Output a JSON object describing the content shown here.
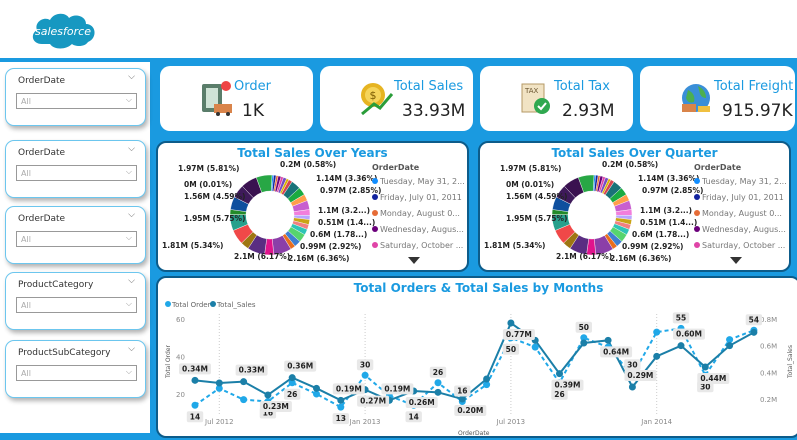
{
  "header": {
    "logo_text": "salesforce"
  },
  "slicers": [
    {
      "title": "OrderDate",
      "value": "All"
    },
    {
      "title": "OrderDate",
      "value": "All"
    },
    {
      "title": "OrderDate",
      "value": "All"
    },
    {
      "title": "ProductCategory",
      "value": "All"
    },
    {
      "title": "ProductSubCategory",
      "value": "All"
    }
  ],
  "kpis": [
    {
      "label": "Order",
      "value": "1K",
      "icon": "clipboard-truck-icon"
    },
    {
      "label": "Total Sales",
      "value": "33.93M",
      "icon": "coin-growth-icon"
    },
    {
      "label": "Total Tax",
      "value": "2.93M",
      "icon": "tax-document-icon"
    },
    {
      "label": "Total Freight",
      "value": "915.97K",
      "icon": "globe-freight-icon"
    }
  ],
  "colors": {
    "accent": "#1a9ae0",
    "order_line": "#20a8e8",
    "sales_line": "#1b7fa8"
  },
  "chart_data": [
    {
      "type": "pie",
      "title": "Total Sales Over Years",
      "legend_title": "OrderDate",
      "legend": [
        {
          "label": "Tuesday, May 31, 2...",
          "color": "#118DFF"
        },
        {
          "label": "Friday, July 01, 2011",
          "color": "#12239E"
        },
        {
          "label": "Monday, August 0...",
          "color": "#E66C37"
        },
        {
          "label": "Wednesday, Augus...",
          "color": "#6B007B"
        },
        {
          "label": "Saturday, October ...",
          "color": "#E044A7"
        }
      ],
      "slices": [
        {
          "value": 0.2,
          "label": "0.2M (0.58%)"
        },
        {
          "value": 0.3
        },
        {
          "value": 0.25
        },
        {
          "value": 0.35
        },
        {
          "value": 0.3
        },
        {
          "value": 0.4
        },
        {
          "value": 0.3
        },
        {
          "value": 0.45
        },
        {
          "value": 1.14,
          "label": "1.14M (3.36%)"
        },
        {
          "value": 0.97,
          "label": "0.97M (2.85%)"
        },
        {
          "value": 0.8
        },
        {
          "value": 1.1,
          "label": "1.1M (3.2...)"
        },
        {
          "value": 0.7
        },
        {
          "value": 0.51,
          "label": "0.51M (1.4...)"
        },
        {
          "value": 0.6
        },
        {
          "value": 0.6,
          "label": "0.6M (1.78...)"
        },
        {
          "value": 0.7
        },
        {
          "value": 0.99,
          "label": "0.99M (2.92%)"
        },
        {
          "value": 0.8
        },
        {
          "value": 0.6
        },
        {
          "value": 2.16,
          "label": "2.16M (6.36%)"
        },
        {
          "value": 1.1
        },
        {
          "value": 2.1,
          "label": "2.1M (6.17%)"
        },
        {
          "value": 1.0
        },
        {
          "value": 1.81,
          "label": "1.81M (5.34%)"
        },
        {
          "value": 1.95,
          "label": "1.95M (5.75%)"
        },
        {
          "value": 0.6
        },
        {
          "value": 1.56,
          "label": "1.56M (4.59%)"
        },
        {
          "value": 0.0,
          "label": "0M (0.01%)"
        },
        {
          "value": 1.6
        },
        {
          "value": 1.97,
          "label": "1.97M (5.81%)"
        },
        {
          "value": 1.9
        }
      ]
    },
    {
      "type": "pie",
      "title": "Total Sales Over Quarter",
      "legend_title": "OrderDate",
      "legend": [
        {
          "label": "Tuesday, May 31, 2...",
          "color": "#118DFF"
        },
        {
          "label": "Friday, July 01, 2011",
          "color": "#12239E"
        },
        {
          "label": "Monday, August 0...",
          "color": "#E66C37"
        },
        {
          "label": "Wednesday, Augus...",
          "color": "#6B007B"
        },
        {
          "label": "Saturday, October ...",
          "color": "#E044A7"
        }
      ],
      "slices": [
        {
          "value": 0.2,
          "label": "0.2M (0.58%)"
        },
        {
          "value": 0.3
        },
        {
          "value": 0.25
        },
        {
          "value": 0.35
        },
        {
          "value": 0.3
        },
        {
          "value": 0.4
        },
        {
          "value": 0.3
        },
        {
          "value": 0.45
        },
        {
          "value": 1.14,
          "label": "1.14M (3.36%)"
        },
        {
          "value": 0.97,
          "label": "0.97M (2.85%)"
        },
        {
          "value": 0.8
        },
        {
          "value": 1.1,
          "label": "1.1M (3.2...)"
        },
        {
          "value": 0.7
        },
        {
          "value": 0.51,
          "label": "0.51M (1.4...)"
        },
        {
          "value": 0.6
        },
        {
          "value": 0.6,
          "label": "0.6M (1.78...)"
        },
        {
          "value": 0.7
        },
        {
          "value": 0.99,
          "label": "0.99M (2.92%)"
        },
        {
          "value": 0.8
        },
        {
          "value": 0.6
        },
        {
          "value": 2.16,
          "label": "2.16M (6.36%)"
        },
        {
          "value": 1.1
        },
        {
          "value": 2.1,
          "label": "2.1M (6.17%)"
        },
        {
          "value": 1.0
        },
        {
          "value": 1.81,
          "label": "1.81M (5.34%)"
        },
        {
          "value": 1.95,
          "label": "1.95M (5.75%)"
        },
        {
          "value": 0.6
        },
        {
          "value": 1.56,
          "label": "1.56M (4.59%)"
        },
        {
          "value": 0.0,
          "label": "0M (0.01%)"
        },
        {
          "value": 1.6
        },
        {
          "value": 1.97,
          "label": "1.97M (5.81%)"
        },
        {
          "value": 1.9
        }
      ]
    },
    {
      "type": "line",
      "title": "Total Orders & Total Sales by Months",
      "xlabel": "OrderDate",
      "ylabel": "Total Order",
      "y2label": "Total_Sales",
      "legend": [
        "Total Order",
        "Total_Sales"
      ],
      "x_ticks": [
        "Jul 2012",
        "Jan 2013",
        "Jul 2013",
        "Jan 2014"
      ],
      "y_ticks": [
        "20",
        "40",
        "60"
      ],
      "y2_ticks": [
        "0.2M",
        "0.4M",
        "0.6M",
        "0.8M"
      ],
      "ylim": [
        0,
        60
      ],
      "y2lim": [
        0,
        0.8
      ],
      "x": [
        "Jun 2012",
        "Jul 2012",
        "Aug 2012",
        "Sep 2012",
        "Oct 2012",
        "Nov 2012",
        "Dec 2012",
        "Jan 2013",
        "Feb 2013",
        "Mar 2013",
        "Apr 2013",
        "May 2013",
        "Jun 2013",
        "Jul 2013",
        "Aug 2013",
        "Sep 2013",
        "Oct 2013",
        "Nov 2013",
        "Dec 2013",
        "Jan 2014",
        "Feb 2014",
        "Mar 2014",
        "Apr 2014",
        "May 2014"
      ],
      "series": [
        {
          "name": "Total Order",
          "values": [
            14,
            23,
            17,
            16,
            26,
            20,
            13,
            30,
            19,
            14,
            26,
            16,
            25,
            50,
            45,
            26,
            50,
            45,
            30,
            53,
            55,
            30,
            49,
            54
          ],
          "labels": [
            "14",
            "",
            "",
            "16",
            "26",
            "",
            "13",
            "30",
            "",
            "14",
            "26",
            "16",
            "",
            "50",
            "",
            "26",
            "50",
            "",
            "30",
            "",
            "55",
            "30",
            "",
            "54"
          ]
        },
        {
          "name": "Total_Sales",
          "values": [
            0.34,
            0.32,
            0.33,
            0.23,
            0.36,
            0.28,
            0.19,
            0.27,
            0.19,
            0.26,
            0.25,
            0.2,
            0.35,
            0.77,
            0.64,
            0.39,
            0.62,
            0.64,
            0.29,
            0.52,
            0.6,
            0.44,
            0.6,
            0.7
          ],
          "labels": [
            "0.34M",
            "",
            "0.33M",
            "0.23M",
            "0.36M",
            "",
            "0.19M",
            "0.27M",
            "0.19M",
            "0.26M",
            "",
            "0.20M",
            "",
            "0.77M",
            "",
            "0.39M",
            "",
            "0.64M",
            "0.29M",
            "",
            "0.60M",
            "0.44M",
            "",
            ""
          ]
        }
      ]
    }
  ]
}
